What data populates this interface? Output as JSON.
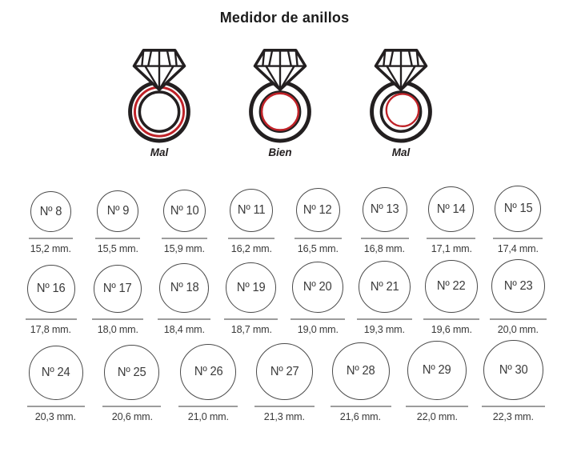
{
  "title": "Medidor de anillos",
  "legend": {
    "items": [
      {
        "label": "Mal"
      },
      {
        "label": "Bien"
      },
      {
        "label": "Mal"
      }
    ]
  },
  "colors": {
    "ring_outline": "#231f20",
    "accent_red": "#bf2228",
    "measure_line": "#9c9c9c",
    "text": "#3a3a3a"
  },
  "sizes": {
    "rows": [
      [
        {
          "label": "Nº 8",
          "mm": "15,2 mm."
        },
        {
          "label": "Nº 9",
          "mm": "15,5 mm."
        },
        {
          "label": "Nº 10",
          "mm": "15,9 mm."
        },
        {
          "label": "Nº 11",
          "mm": "16,2 mm."
        },
        {
          "label": "Nº 12",
          "mm": "16,5 mm."
        },
        {
          "label": "Nº 13",
          "mm": "16,8 mm."
        },
        {
          "label": "Nº 14",
          "mm": "17,1 mm."
        },
        {
          "label": "Nº 15",
          "mm": "17,4 mm."
        }
      ],
      [
        {
          "label": "Nº 16",
          "mm": "17,8 mm."
        },
        {
          "label": "Nº 17",
          "mm": "18,0 mm."
        },
        {
          "label": "Nº 18",
          "mm": "18,4 mm."
        },
        {
          "label": "Nº 19",
          "mm": "18,7 mm."
        },
        {
          "label": "Nº 20",
          "mm": "19,0 mm."
        },
        {
          "label": "Nº 21",
          "mm": "19,3 mm."
        },
        {
          "label": "Nº 22",
          "mm": "19,6 mm."
        },
        {
          "label": "Nº 23",
          "mm": "20,0 mm."
        }
      ],
      [
        {
          "label": "Nº 24",
          "mm": "20,3 mm."
        },
        {
          "label": "Nº 25",
          "mm": "20,6 mm."
        },
        {
          "label": "Nº 26",
          "mm": "21,0 mm."
        },
        {
          "label": "Nº 27",
          "mm": "21,3 mm."
        },
        {
          "label": "Nº 28",
          "mm": "21,6 mm."
        },
        {
          "label": "Nº 29",
          "mm": "22,0 mm."
        },
        {
          "label": "Nº 30",
          "mm": "22,3 mm."
        }
      ]
    ]
  }
}
